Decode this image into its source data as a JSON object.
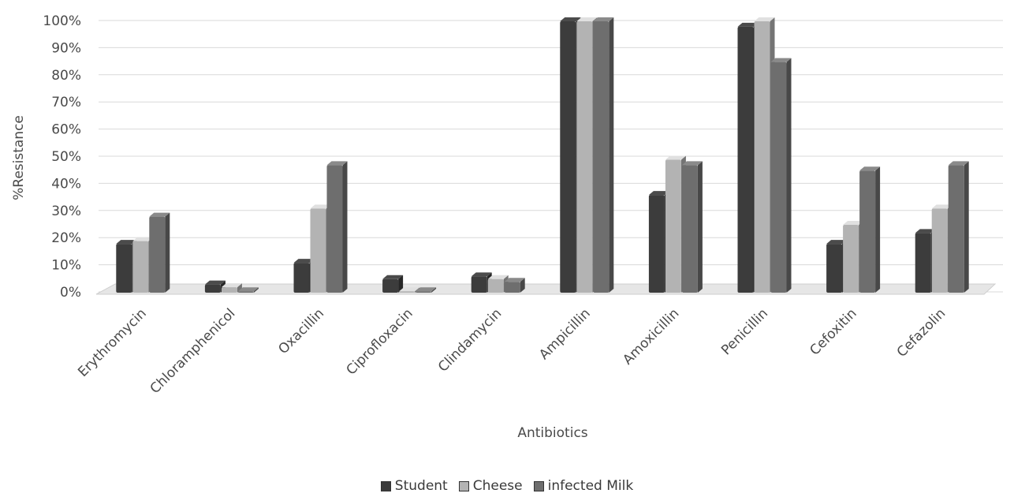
{
  "chart_data": {
    "type": "bar",
    "title": "",
    "xlabel": "Antibiotics",
    "ylabel": "%Resistance",
    "ylim": [
      0,
      100
    ],
    "ytick_step": 10,
    "ytick_suffix": "%",
    "grid": true,
    "legend_position": "bottom",
    "categories": [
      "Erythromycin",
      "Chloramphenicol",
      "Oxacillin",
      "Ciprofloxacin",
      "Clindamycin",
      "Ampicillin",
      "Amoxicillin",
      "Penicillin",
      "Cefoxitin",
      "Cefazolin"
    ],
    "series": [
      {
        "name": "Student",
        "color": "#3c3c3c",
        "values": [
          18,
          3,
          11,
          5,
          6,
          100,
          36,
          98,
          18,
          22
        ]
      },
      {
        "name": "Cheese",
        "color": "#b3b3b3",
        "values": [
          19,
          2,
          31,
          0.5,
          5,
          100,
          49,
          100,
          25,
          31
        ]
      },
      {
        "name": "infected Milk",
        "color": "#6e6e6e",
        "values": [
          28,
          0.5,
          47,
          0.5,
          4,
          100,
          47,
          85,
          45,
          47
        ]
      }
    ]
  }
}
